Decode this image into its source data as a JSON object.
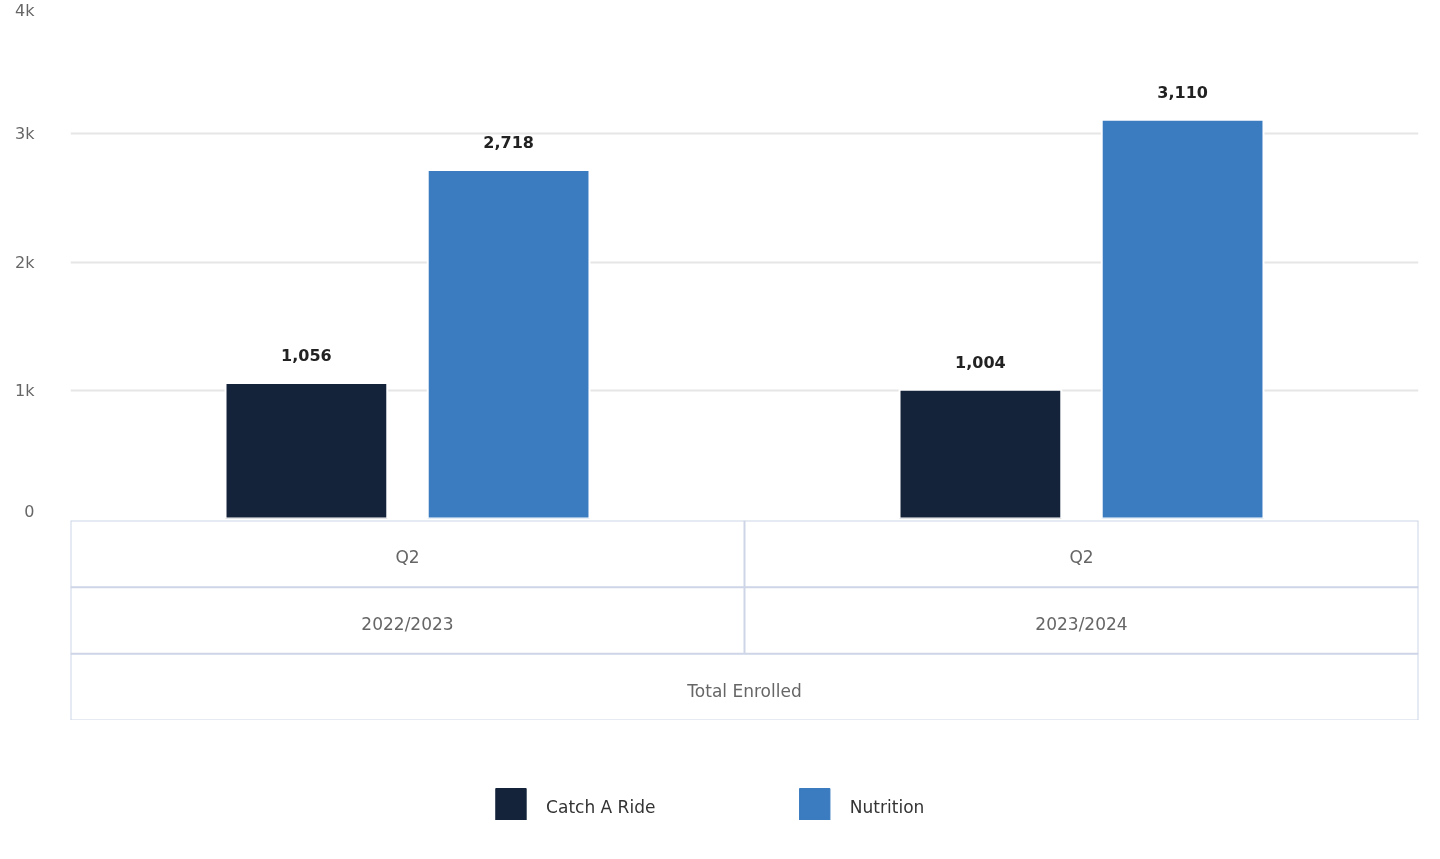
{
  "chart_data": {
    "type": "bar",
    "categories": [
      "Q2",
      "Q2"
    ],
    "series": [
      {
        "name": "Catch A Ride",
        "color": "#14233a",
        "values": [
          1056,
          1004
        ],
        "value_labels": [
          "1,056",
          "1,004"
        ]
      },
      {
        "name": "Nutrition",
        "color": "#3b7bc0",
        "values": [
          2718,
          3110
        ],
        "value_labels": [
          "2,718",
          "3,110"
        ]
      }
    ],
    "annotations": [
      "2022/2023",
      "2023/2024",
      "Total Enrolled"
    ],
    "ylim": [
      0,
      4000
    ],
    "yticks": [
      0,
      {
        "value": 1000,
        "label": "1k"
      },
      {
        "value": 2000,
        "label": "2k"
      },
      {
        "value": 3000,
        "label": "3k"
      },
      {
        "value": 4000,
        "label": "4k"
      }
    ],
    "grid": "y",
    "legend": "bottom"
  }
}
